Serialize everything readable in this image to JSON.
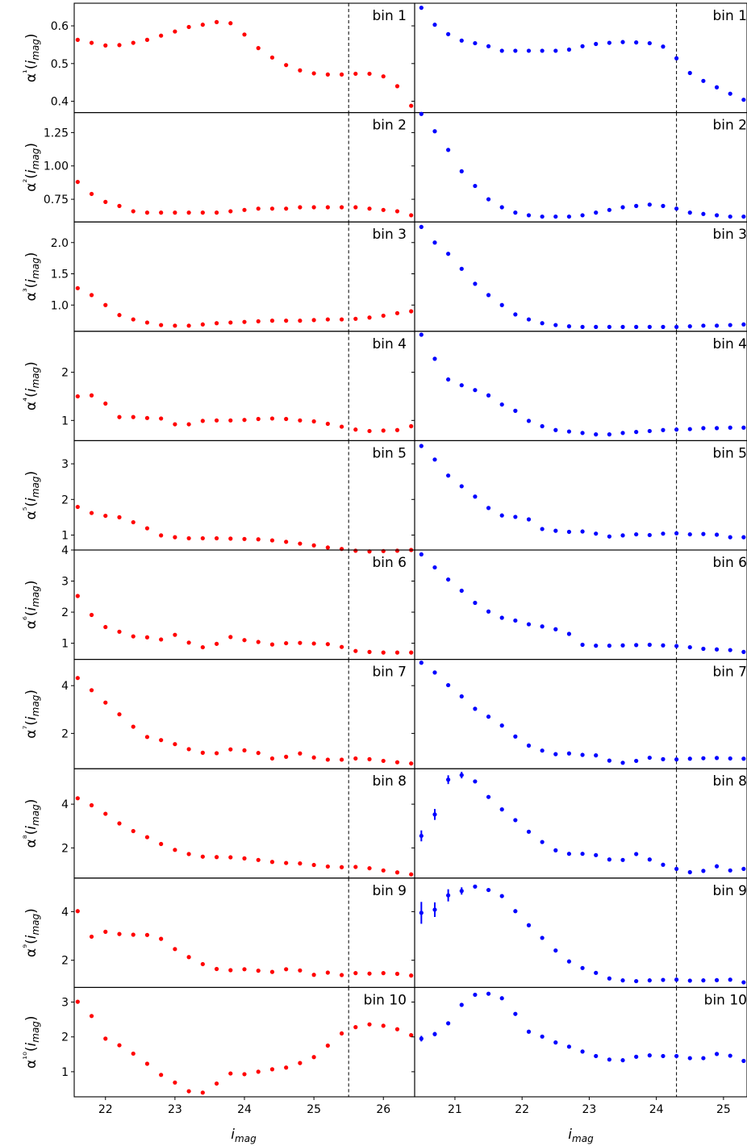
{
  "chart_data": {
    "type": "scatter",
    "rows": 10,
    "cols": 2,
    "xlabel": "i_mag",
    "panel_label_prefix": "bin",
    "columns": [
      {
        "color": "#ff0000",
        "xlim": [
          21.55,
          26.45
        ],
        "xticks": [
          22,
          23,
          24,
          25,
          26
        ],
        "cut": 25.5,
        "x": [
          21.6,
          21.8,
          22.0,
          22.2,
          22.4,
          22.6,
          22.8,
          23.0,
          23.2,
          23.4,
          23.6,
          23.8,
          24.0,
          24.2,
          24.4,
          24.6,
          24.8,
          25.0,
          25.2,
          25.4,
          25.6,
          25.8,
          26.0,
          26.2,
          26.4
        ]
      },
      {
        "color": "#0000ff",
        "xlim": [
          20.4,
          25.35
        ],
        "xticks": [
          21,
          22,
          23,
          24,
          25
        ],
        "cut": 24.3,
        "x": [
          20.5,
          20.7,
          20.9,
          21.1,
          21.3,
          21.5,
          21.7,
          21.9,
          22.1,
          22.3,
          22.5,
          22.7,
          22.9,
          23.1,
          23.3,
          23.5,
          23.7,
          23.9,
          24.1,
          24.3,
          24.5,
          24.7,
          24.9,
          25.1,
          25.3
        ]
      }
    ],
    "rows_data": [
      {
        "ylabel": "α¹(i_mag)",
        "label_left": "bin 1",
        "label_right": "bin 1",
        "ylim": [
          0.37,
          0.66
        ],
        "yticks": [
          0.4,
          0.5,
          0.6
        ],
        "ytick_labels": [
          "0.4",
          "0.5",
          "0.6"
        ],
        "left": [
          0.563,
          0.555,
          0.548,
          0.549,
          0.555,
          0.563,
          0.574,
          0.585,
          0.597,
          0.603,
          0.61,
          0.607,
          0.577,
          0.541,
          0.516,
          0.496,
          0.482,
          0.474,
          0.471,
          0.471,
          0.473,
          0.473,
          0.466,
          0.44,
          0.388
        ],
        "right": [
          0.648,
          0.603,
          0.578,
          0.561,
          0.554,
          0.546,
          0.534,
          0.534,
          0.534,
          0.534,
          0.534,
          0.537,
          0.546,
          0.552,
          0.555,
          0.557,
          0.556,
          0.554,
          0.545,
          0.514,
          0.475,
          0.454,
          0.437,
          0.42,
          0.404
        ]
      },
      {
        "ylabel": "α²(i_mag)",
        "label_left": "bin 2",
        "label_right": "bin 2",
        "ylim": [
          0.58,
          1.4
        ],
        "yticks": [
          0.75,
          1.0,
          1.25
        ],
        "ytick_labels": [
          "0.75",
          "1.00",
          "1.25"
        ],
        "left": [
          0.88,
          0.79,
          0.73,
          0.7,
          0.66,
          0.65,
          0.65,
          0.65,
          0.65,
          0.65,
          0.65,
          0.66,
          0.67,
          0.68,
          0.68,
          0.68,
          0.69,
          0.69,
          0.69,
          0.69,
          0.69,
          0.68,
          0.67,
          0.66,
          0.63
        ],
        "right": [
          1.39,
          1.26,
          1.12,
          0.96,
          0.85,
          0.75,
          0.69,
          0.65,
          0.63,
          0.62,
          0.62,
          0.62,
          0.63,
          0.65,
          0.67,
          0.69,
          0.7,
          0.71,
          0.7,
          0.68,
          0.65,
          0.64,
          0.63,
          0.62,
          0.62
        ]
      },
      {
        "ylabel": "α³(i_mag)",
        "label_left": "bin 3",
        "label_right": "bin 3",
        "ylim": [
          0.58,
          2.33
        ],
        "yticks": [
          1.0,
          1.5,
          2.0
        ],
        "ytick_labels": [
          "1.0",
          "1.5",
          "2.0"
        ],
        "left": [
          1.27,
          1.16,
          1.0,
          0.84,
          0.77,
          0.72,
          0.68,
          0.67,
          0.67,
          0.69,
          0.71,
          0.72,
          0.73,
          0.74,
          0.75,
          0.75,
          0.75,
          0.76,
          0.77,
          0.77,
          0.78,
          0.8,
          0.83,
          0.87,
          0.9
        ],
        "right": [
          2.25,
          2.0,
          1.82,
          1.58,
          1.34,
          1.16,
          1.0,
          0.85,
          0.77,
          0.71,
          0.68,
          0.66,
          0.65,
          0.65,
          0.65,
          0.65,
          0.65,
          0.65,
          0.65,
          0.65,
          0.66,
          0.67,
          0.67,
          0.68,
          0.69
        ]
      },
      {
        "ylabel": "α⁴(i_mag)",
        "label_left": "bin 4",
        "label_right": "bin 4",
        "ylim": [
          0.58,
          2.85
        ],
        "yticks": [
          1,
          2
        ],
        "ytick_labels": [
          "1",
          "2"
        ],
        "left": [
          1.5,
          1.52,
          1.35,
          1.07,
          1.07,
          1.05,
          1.04,
          0.92,
          0.92,
          0.99,
          1.0,
          1.0,
          1.01,
          1.03,
          1.04,
          1.03,
          1.0,
          0.98,
          0.93,
          0.87,
          0.81,
          0.78,
          0.79,
          0.8,
          0.88
        ],
        "right": [
          2.78,
          2.28,
          1.85,
          1.73,
          1.63,
          1.52,
          1.33,
          1.2,
          0.99,
          0.88,
          0.8,
          0.77,
          0.74,
          0.71,
          0.71,
          0.74,
          0.76,
          0.78,
          0.8,
          0.81,
          0.82,
          0.84,
          0.84,
          0.85,
          0.85
        ]
      },
      {
        "ylabel": "α⁵(i_mag)",
        "label_left": "bin 5",
        "label_right": "bin 5",
        "ylim": [
          0.58,
          3.65
        ],
        "yticks": [
          1,
          2,
          3
        ],
        "ytick_labels": [
          "1",
          "2",
          "3"
        ],
        "left": [
          1.79,
          1.62,
          1.54,
          1.5,
          1.36,
          1.19,
          0.99,
          0.94,
          0.91,
          0.91,
          0.91,
          0.9,
          0.89,
          0.88,
          0.85,
          0.81,
          0.76,
          0.71,
          0.65,
          0.61,
          0.56,
          0.54,
          0.55,
          0.56,
          0.58
        ],
        "right": [
          3.5,
          3.12,
          2.67,
          2.37,
          2.08,
          1.76,
          1.55,
          1.51,
          1.44,
          1.17,
          1.12,
          1.09,
          1.1,
          1.04,
          0.96,
          0.99,
          1.02,
          1.0,
          1.04,
          1.05,
          1.02,
          1.03,
          1.01,
          0.94,
          0.94
        ]
      },
      {
        "ylabel": "α⁶(i_mag)",
        "label_left": "bin 6",
        "label_right": "bin 6",
        "ylim": [
          0.48,
          4.0
        ],
        "yticks": [
          1,
          2,
          3,
          4
        ],
        "ytick_labels": [
          "1",
          "2",
          "3",
          "4"
        ],
        "left": [
          2.52,
          1.91,
          1.52,
          1.37,
          1.22,
          1.19,
          1.12,
          1.27,
          1.02,
          0.87,
          0.98,
          1.2,
          1.1,
          1.04,
          0.96,
          1.0,
          1.01,
          0.99,
          0.97,
          0.88,
          0.75,
          0.72,
          0.7,
          0.7,
          0.7
        ],
        "right": [
          3.86,
          3.44,
          3.05,
          2.69,
          2.3,
          2.02,
          1.82,
          1.73,
          1.61,
          1.54,
          1.45,
          1.3,
          0.95,
          0.92,
          0.92,
          0.93,
          0.94,
          0.95,
          0.93,
          0.91,
          0.87,
          0.82,
          0.8,
          0.78,
          0.72
        ]
      },
      {
        "ylabel": "α⁷(i_mag)",
        "label_left": "bin 7",
        "label_right": "bin 7",
        "ylim": [
          0.52,
          5.1
        ],
        "yticks": [
          2,
          4
        ],
        "ytick_labels": [
          "2",
          "4"
        ],
        "left": [
          4.32,
          3.81,
          3.29,
          2.8,
          2.28,
          1.85,
          1.72,
          1.55,
          1.34,
          1.19,
          1.17,
          1.33,
          1.29,
          1.18,
          0.95,
          1.02,
          1.16,
          0.99,
          0.9,
          0.9,
          0.95,
          0.92,
          0.85,
          0.79,
          0.74
        ],
        "right": [
          4.96,
          4.55,
          4.02,
          3.55,
          3.03,
          2.7,
          2.33,
          1.87,
          1.49,
          1.28,
          1.13,
          1.16,
          1.1,
          1.08,
          0.86,
          0.77,
          0.85,
          0.98,
          0.92,
          0.91,
          0.94,
          0.96,
          0.97,
          0.95,
          0.94
        ]
      },
      {
        "ylabel": "α⁸(i_mag)",
        "label_left": "bin 8",
        "label_right": "bin 8",
        "ylim": [
          0.62,
          5.62
        ],
        "yticks": [
          2,
          4
        ],
        "ytick_labels": [
          "2",
          "4"
        ],
        "left": [
          4.27,
          3.95,
          3.56,
          3.12,
          2.77,
          2.49,
          2.18,
          1.91,
          1.72,
          1.6,
          1.58,
          1.57,
          1.52,
          1.45,
          1.36,
          1.31,
          1.29,
          1.22,
          1.15,
          1.12,
          1.13,
          1.07,
          0.97,
          0.88,
          0.79
        ],
        "right": [
          2.55,
          3.53,
          5.12,
          5.33,
          5.04,
          4.33,
          3.76,
          3.27,
          2.74,
          2.27,
          1.89,
          1.73,
          1.73,
          1.67,
          1.47,
          1.45,
          1.72,
          1.47,
          1.23,
          1.04,
          0.89,
          0.95,
          1.16,
          0.97,
          1.04
        ],
        "right_err": [
          0.25,
          0.25,
          0.2,
          0.15,
          0.0,
          0.0,
          0.0,
          0.0,
          0.0,
          0.0,
          0.0,
          0.0,
          0.0,
          0.0,
          0.0,
          0.0,
          0.0,
          0.0,
          0.0,
          0.0,
          0.0,
          0.0,
          0.0,
          0.0,
          0.0
        ]
      },
      {
        "ylabel": "α⁹(i_mag)",
        "label_left": "bin 9",
        "label_right": "bin 9",
        "ylim": [
          0.88,
          5.38
        ],
        "yticks": [
          2,
          4
        ],
        "ytick_labels": [
          "2",
          "4"
        ],
        "left": [
          4.02,
          2.97,
          3.17,
          3.08,
          3.05,
          3.04,
          2.88,
          2.46,
          2.13,
          1.84,
          1.64,
          1.59,
          1.63,
          1.57,
          1.52,
          1.63,
          1.58,
          1.4,
          1.49,
          1.39,
          1.47,
          1.45,
          1.47,
          1.44,
          1.37
        ],
        "right": [
          3.95,
          4.08,
          4.67,
          4.85,
          5.03,
          4.89,
          4.64,
          4.02,
          3.44,
          2.92,
          2.4,
          1.95,
          1.68,
          1.48,
          1.25,
          1.17,
          1.14,
          1.17,
          1.19,
          1.2,
          1.16,
          1.17,
          1.18,
          1.2,
          1.09
        ],
        "right_err": [
          0.45,
          0.3,
          0.25,
          0.15,
          0.0,
          0.0,
          0.0,
          0.0,
          0.0,
          0.0,
          0.0,
          0.0,
          0.0,
          0.0,
          0.0,
          0.0,
          0.0,
          0.0,
          0.0,
          0.0,
          0.0,
          0.0,
          0.0,
          0.0,
          0.0
        ]
      },
      {
        "ylabel": "α¹⁰(i_mag)",
        "label_left": "bin 10",
        "label_right": "bin 10",
        "ylim": [
          0.28,
          3.42
        ],
        "yticks": [
          1,
          2,
          3
        ],
        "ytick_labels": [
          "1",
          "2",
          "3"
        ],
        "left": [
          3.01,
          2.6,
          1.95,
          1.76,
          1.52,
          1.23,
          0.91,
          0.69,
          0.44,
          0.4,
          0.66,
          0.95,
          0.93,
          1.0,
          1.07,
          1.12,
          1.25,
          1.42,
          1.75,
          2.1,
          2.28,
          2.36,
          2.32,
          2.22,
          2.05
        ],
        "right": [
          1.95,
          2.08,
          2.39,
          2.92,
          3.21,
          3.24,
          3.11,
          2.66,
          2.15,
          2.01,
          1.84,
          1.72,
          1.58,
          1.45,
          1.35,
          1.33,
          1.43,
          1.47,
          1.45,
          1.45,
          1.39,
          1.39,
          1.51,
          1.46,
          1.31
        ],
        "right_err": [
          0.08,
          0.06,
          0.0,
          0.0,
          0.0,
          0.0,
          0.0,
          0.0,
          0.0,
          0.0,
          0.0,
          0.0,
          0.0,
          0.0,
          0.0,
          0.0,
          0.0,
          0.0,
          0.0,
          0.0,
          0.0,
          0.0,
          0.0,
          0.0,
          0.0
        ]
      }
    ]
  }
}
